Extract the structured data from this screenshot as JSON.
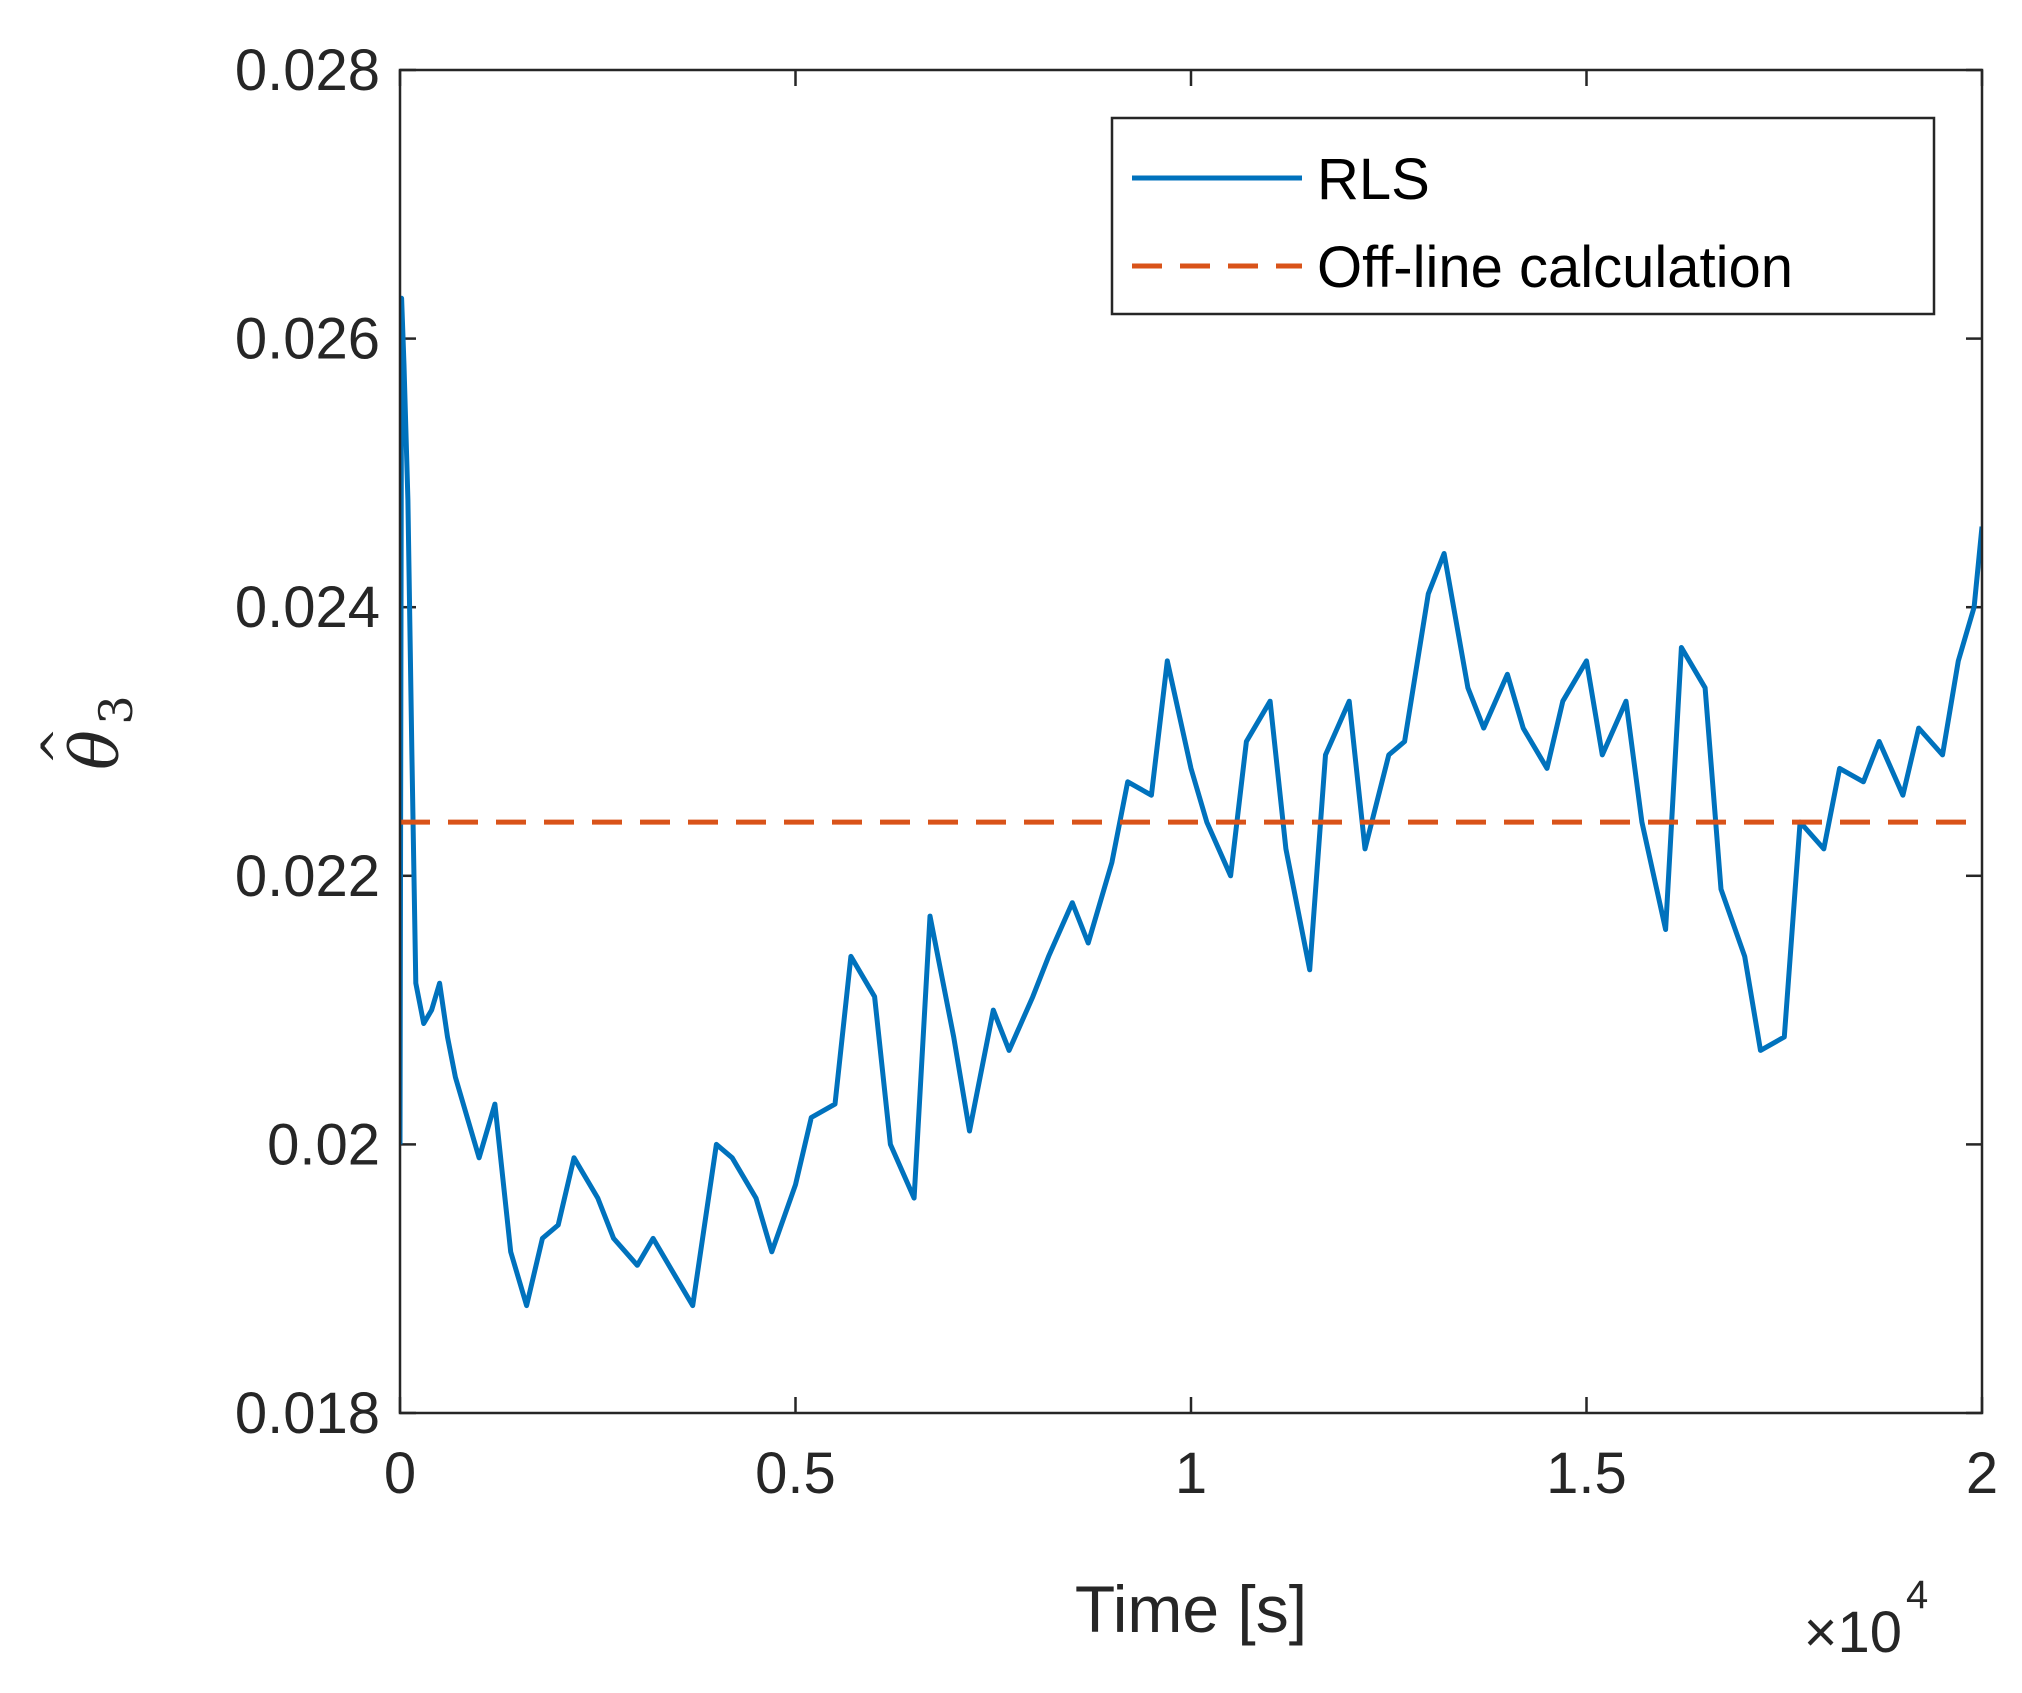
{
  "chart_data": {
    "type": "line",
    "title": "",
    "xlabel": "Time [s]",
    "ylabel": "θ̂3",
    "ylabel_symbol": "θ",
    "ylabel_hat": "^",
    "ylabel_subscript": "3",
    "x_exponent_label": "×10",
    "x_exponent_power": "4",
    "xlim": [
      0,
      2
    ],
    "ylim": [
      0.018,
      0.028
    ],
    "x_unit_multiplier": 10000,
    "xticks": [
      0,
      0.5,
      1,
      1.5,
      2
    ],
    "xtick_labels": [
      "0",
      "0.5",
      "1",
      "1.5",
      "2"
    ],
    "yticks": [
      0.018,
      0.02,
      0.022,
      0.024,
      0.026,
      0.028
    ],
    "ytick_labels": [
      "0.018",
      "0.02",
      "0.022",
      "0.024",
      "0.026",
      "0.028"
    ],
    "grid": false,
    "legend_position": "top-right",
    "series": [
      {
        "name": "RLS",
        "color": "#0072BD",
        "style": "solid",
        "x": [
          0,
          0.002,
          0.005,
          0.01,
          0.015,
          0.02,
          0.03,
          0.04,
          0.05,
          0.06,
          0.07,
          0.08,
          0.1,
          0.12,
          0.14,
          0.16,
          0.18,
          0.2,
          0.22,
          0.25,
          0.27,
          0.3,
          0.32,
          0.35,
          0.37,
          0.4,
          0.42,
          0.45,
          0.47,
          0.5,
          0.52,
          0.55,
          0.57,
          0.6,
          0.62,
          0.65,
          0.67,
          0.7,
          0.72,
          0.75,
          0.77,
          0.8,
          0.82,
          0.85,
          0.87,
          0.9,
          0.92,
          0.95,
          0.97,
          1.0,
          1.02,
          1.05,
          1.07,
          1.1,
          1.12,
          1.15,
          1.17,
          1.2,
          1.22,
          1.25,
          1.27,
          1.3,
          1.32,
          1.35,
          1.37,
          1.4,
          1.42,
          1.45,
          1.47,
          1.5,
          1.52,
          1.55,
          1.57,
          1.6,
          1.62,
          1.65,
          1.67,
          1.7,
          1.72,
          1.75,
          1.77,
          1.8,
          1.82,
          1.85,
          1.87,
          1.9,
          1.92,
          1.95,
          1.97,
          1.99,
          2.0
        ],
        "values": [
          0.02,
          0.0263,
          0.0258,
          0.0248,
          0.0229,
          0.0212,
          0.0209,
          0.021,
          0.0212,
          0.0208,
          0.0205,
          0.0203,
          0.0199,
          0.0203,
          0.0192,
          0.0188,
          0.0193,
          0.0194,
          0.0199,
          0.0196,
          0.0193,
          0.0191,
          0.0193,
          0.019,
          0.0188,
          0.02,
          0.0199,
          0.0196,
          0.0192,
          0.0197,
          0.0202,
          0.0203,
          0.0214,
          0.0211,
          0.02,
          0.0196,
          0.0217,
          0.0208,
          0.0201,
          0.021,
          0.0207,
          0.0211,
          0.0214,
          0.0218,
          0.0215,
          0.0221,
          0.0227,
          0.0226,
          0.0236,
          0.0228,
          0.0224,
          0.022,
          0.023,
          0.0233,
          0.0222,
          0.0213,
          0.0229,
          0.0233,
          0.0222,
          0.0229,
          0.023,
          0.0241,
          0.0244,
          0.0234,
          0.0231,
          0.0235,
          0.0231,
          0.0228,
          0.0233,
          0.0236,
          0.0229,
          0.0233,
          0.0224,
          0.0216,
          0.0237,
          0.0234,
          0.0219,
          0.0214,
          0.0207,
          0.0208,
          0.0224,
          0.0222,
          0.0228,
          0.0227,
          0.023,
          0.0226,
          0.0231,
          0.0229,
          0.0236,
          0.024,
          0.0246
        ]
      },
      {
        "name": "Off-line calculation",
        "color": "#D95319",
        "style": "dashed",
        "x": [
          0,
          2
        ],
        "values": [
          0.0224,
          0.0224
        ]
      }
    ]
  }
}
